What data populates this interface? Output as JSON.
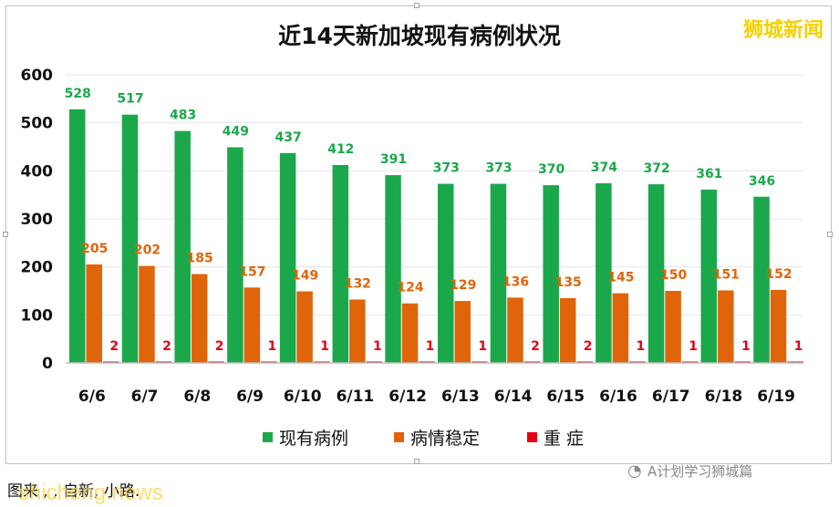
{
  "chart_data": {
    "type": "bar",
    "title": "近14天新加坡现有病例状况",
    "categories": [
      "6/6",
      "6/7",
      "6/8",
      "6/9",
      "6/10",
      "6/11",
      "6/12",
      "6/13",
      "6/14",
      "6/15",
      "6/16",
      "6/17",
      "6/18",
      "6/19"
    ],
    "series": [
      {
        "name": "现有病例",
        "color": "#1aa84a",
        "label_color": "#1aa84a",
        "values": [
          528,
          517,
          483,
          449,
          437,
          412,
          391,
          373,
          373,
          370,
          374,
          372,
          361,
          346
        ]
      },
      {
        "name": "病情稳定",
        "color": "#e0640a",
        "label_color": "#e0640a",
        "values": [
          205,
          202,
          185,
          157,
          149,
          132,
          124,
          129,
          136,
          135,
          145,
          150,
          151,
          152
        ]
      },
      {
        "name": "重 症",
        "color": "#e60012",
        "label_color": "#e60012",
        "values": [
          2,
          2,
          2,
          1,
          1,
          1,
          1,
          1,
          2,
          2,
          1,
          1,
          1,
          1
        ]
      }
    ],
    "ylim": [
      0,
      600
    ],
    "yticks": [
      0,
      100,
      200,
      300,
      400,
      500,
      600
    ],
    "grid": true,
    "legend_position": "bottom"
  },
  "brand": "狮城新闻",
  "footer_note": "A计划学习狮城篇",
  "caption": "图来 ,  ,  自新,  小路.",
  "site_watermark": "shicheng.news"
}
